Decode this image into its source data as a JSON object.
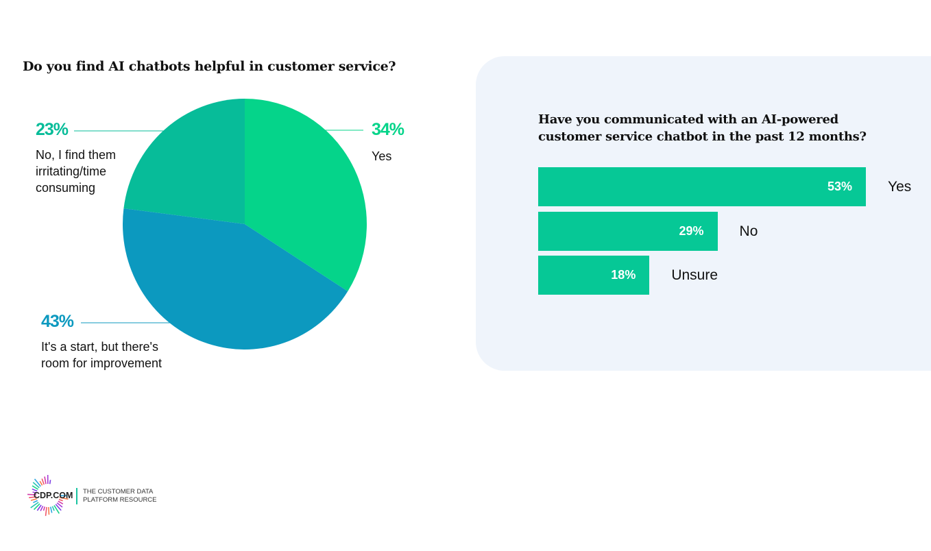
{
  "chart_data": [
    {
      "type": "pie",
      "title": "Do you find AI chatbots helpful in customer service?",
      "slices": [
        {
          "label": "Yes",
          "value": 34,
          "display": "34%",
          "color": "#05d48a"
        },
        {
          "label": "It's a start, but there's room for improvement",
          "value": 43,
          "display": "43%",
          "color": "#0c99bf"
        },
        {
          "label": "No, I find them irritating/time consuming",
          "value": 23,
          "display": "23%",
          "color": "#07bc99"
        }
      ]
    },
    {
      "type": "bar",
      "orientation": "horizontal",
      "title": "Have you communicated with an AI-powered customer service chatbot in the past 12 months?",
      "categories": [
        "Yes",
        "No",
        "Unsure"
      ],
      "values": [
        53,
        29,
        18
      ],
      "display": [
        "53%",
        "29%",
        "18%"
      ],
      "color": "#06c896"
    }
  ],
  "logo": {
    "name": "CDP.COM",
    "tagline_line1": "THE CUSTOMER DATA",
    "tagline_line2": "PLATFORM RESOURCE"
  }
}
